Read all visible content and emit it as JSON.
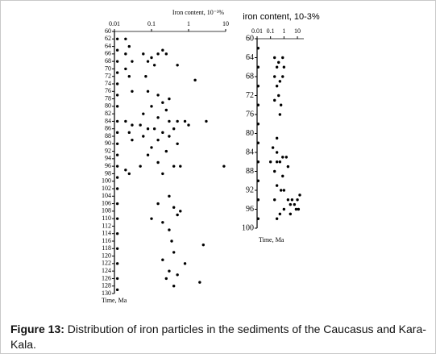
{
  "chart_data": [
    {
      "type": "scatter",
      "title": "Iron content, 10⁻³%",
      "y_label": "Time, Ma",
      "log_x": true,
      "y_reversed": true,
      "color": "#000000",
      "xlim": [
        0.01,
        10
      ],
      "xticks": [
        0.01,
        0.1,
        1,
        10
      ],
      "ylim": [
        60,
        130
      ],
      "yticks": [
        60,
        62,
        64,
        66,
        68,
        70,
        72,
        74,
        76,
        78,
        80,
        82,
        84,
        86,
        88,
        90,
        92,
        94,
        96,
        98,
        100,
        102,
        104,
        106,
        108,
        110,
        112,
        114,
        116,
        118,
        120,
        122,
        124,
        126,
        128,
        130
      ],
      "x": [
        0.012,
        0.012,
        0.012,
        0.012,
        0.012,
        0.012,
        0.012,
        0.012,
        0.012,
        0.012,
        0.012,
        0.012,
        0.012,
        0.012,
        0.012,
        0.012,
        0.012,
        0.012,
        0.012,
        0.012,
        0.012,
        0.02,
        0.025,
        0.02,
        0.03,
        0.02,
        0.025,
        0.03,
        0.02,
        0.03,
        0.025,
        0.03,
        0.02,
        0.025,
        0.06,
        0.08,
        0.1,
        0.15,
        0.2,
        0.25,
        0.12,
        0.07,
        0.5,
        1.5,
        0.08,
        0.15,
        0.2,
        0.3,
        0.1,
        0.25,
        0.06,
        0.15,
        0.5,
        0.8,
        3,
        0.3,
        0.05,
        0.08,
        0.12,
        0.2,
        0.4,
        1,
        0.06,
        0.15,
        0.3,
        0.5,
        0.1,
        0.25,
        0.08,
        0.15,
        0.4,
        0.6,
        9,
        0.05,
        0.2,
        0.3,
        0.15,
        0.4,
        0.6,
        0.1,
        0.2,
        0.5,
        0.3,
        0.35,
        2.5,
        0.4,
        0.2,
        0.8,
        0.3,
        0.25,
        0.5,
        2,
        0.4
      ],
      "values": [
        62,
        65,
        68,
        71,
        74,
        77,
        80,
        84,
        87,
        90,
        93,
        96,
        99,
        102,
        106,
        110,
        114,
        118,
        122,
        126,
        129,
        62,
        64,
        66,
        68,
        70,
        72,
        76,
        84,
        85,
        87,
        89,
        97,
        98,
        66,
        68,
        67,
        66,
        65,
        66,
        69,
        72,
        69,
        73,
        76,
        77,
        79,
        78,
        80,
        81,
        82,
        83,
        84,
        84,
        84,
        84,
        85,
        86,
        86,
        87,
        86,
        85,
        88,
        89,
        88,
        90,
        91,
        92,
        93,
        95,
        96,
        96,
        96,
        96,
        98,
        104,
        106,
        107,
        108,
        110,
        111,
        109,
        113,
        116,
        117,
        119,
        121,
        122,
        124,
        126,
        125,
        127,
        128
      ]
    },
    {
      "type": "scatter",
      "title": "iron content, 10-3%",
      "y_label": "Time, Ma",
      "log_x": true,
      "y_reversed": true,
      "color": "#000000",
      "xlim": [
        0.01,
        30
      ],
      "xticks": [
        0.01,
        0.1,
        1,
        10
      ],
      "ylim": [
        60,
        100
      ],
      "yticks": [
        60,
        64,
        68,
        72,
        76,
        80,
        84,
        88,
        92,
        96,
        100
      ],
      "x": [
        0.012,
        0.012,
        0.012,
        0.012,
        0.012,
        0.012,
        0.012,
        0.012,
        0.012,
        0.012,
        0.2,
        0.4,
        0.8,
        0.3,
        1,
        0.2,
        0.5,
        0.8,
        0.3,
        0.4,
        0.2,
        0.6,
        0.5,
        0.3,
        0.15,
        0.3,
        0.8,
        1.5,
        0.1,
        0.3,
        2,
        0.5,
        0.2,
        0.8,
        0.3,
        0.6,
        1,
        0.2,
        2,
        4,
        10,
        15,
        3,
        6,
        1,
        8,
        0.5,
        3,
        12,
        0.3
      ],
      "values": [
        62,
        66,
        70,
        74,
        78,
        82,
        86,
        90,
        94,
        98,
        64,
        65,
        64,
        66,
        66,
        68,
        69,
        68,
        70,
        72,
        73,
        74,
        76,
        81,
        83,
        84,
        85,
        85,
        86,
        86,
        87,
        86,
        88,
        89,
        91,
        92,
        92,
        94,
        94,
        94,
        94,
        93,
        95,
        95,
        96,
        96,
        97,
        97,
        96,
        98
      ]
    }
  ],
  "caption": {
    "label": "Figure 13:",
    "text": "Distribution of iron particles in the sediments of the Caucasus and Kara-Kala."
  }
}
